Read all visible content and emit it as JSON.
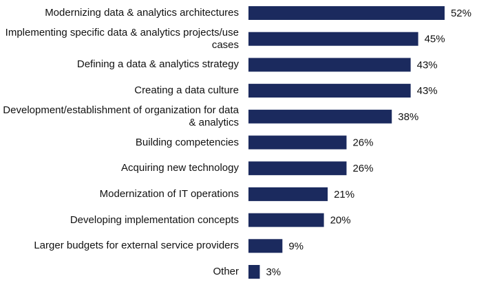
{
  "chart_data": {
    "type": "bar",
    "orientation": "horizontal",
    "color": "#1b2a5e",
    "categories": [
      "Modernizing data & analytics architectures",
      "Implementing specific data & analytics projects/use cases",
      "Defining a data & analytics strategy",
      "Creating a data culture",
      "Development/establishment of organization for data & analytics",
      "Building competencies",
      "Acquiring new technology",
      "Modernization of IT operations",
      "Developing implementation concepts",
      "Larger budgets for external service providers",
      "Other"
    ],
    "values": [
      52,
      45,
      43,
      43,
      38,
      26,
      26,
      21,
      20,
      9,
      3
    ],
    "value_labels": [
      "52%",
      "45%",
      "43%",
      "43%",
      "38%",
      "26%",
      "26%",
      "21%",
      "20%",
      "9%",
      "3%"
    ]
  }
}
